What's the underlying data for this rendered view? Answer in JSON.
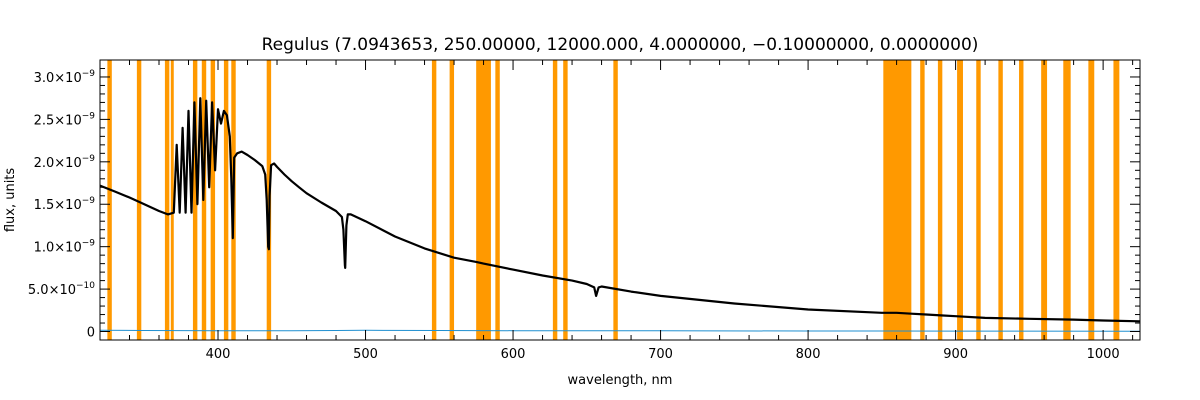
{
  "chart_data": {
    "type": "line",
    "title": "Regulus   (7.0943653, 250.00000, 12000.000, 4.0000000, −0.10000000, 0.0000000)",
    "xlabel": "wavelength, nm",
    "ylabel": "flux, units",
    "xlim": [
      320,
      1025
    ],
    "ylim": [
      -1e-10,
      3.2e-09
    ],
    "x_ticks": [
      {
        "value": 400,
        "label": "400"
      },
      {
        "value": 500,
        "label": "500"
      },
      {
        "value": 600,
        "label": "600"
      },
      {
        "value": 700,
        "label": "700"
      },
      {
        "value": 800,
        "label": "800"
      },
      {
        "value": 900,
        "label": "900"
      },
      {
        "value": 1000,
        "label": "1000"
      }
    ],
    "y_ticks": [
      {
        "value": 0,
        "mant": "0",
        "exp": ""
      },
      {
        "value": 5e-10,
        "mant": "5.0×10",
        "exp": "−10"
      },
      {
        "value": 1e-09,
        "mant": "1.0×10",
        "exp": "−9"
      },
      {
        "value": 1.5e-09,
        "mant": "1.5×10",
        "exp": "−9"
      },
      {
        "value": 2e-09,
        "mant": "2.0×10",
        "exp": "−9"
      },
      {
        "value": 2.5e-09,
        "mant": "2.5×10",
        "exp": "−9"
      },
      {
        "value": 3e-09,
        "mant": "3.0×10",
        "exp": "−9"
      }
    ],
    "colors": {
      "spectrum": "#000000",
      "error": "#1f8fd0",
      "mask": "#ff9900"
    },
    "masked_bands": [
      [
        325,
        328
      ],
      [
        345,
        348
      ],
      [
        364,
        367
      ],
      [
        368,
        370
      ],
      [
        383,
        386
      ],
      [
        389,
        392
      ],
      [
        395,
        398
      ],
      [
        404,
        407
      ],
      [
        409,
        412
      ],
      [
        433,
        436
      ],
      [
        545,
        548
      ],
      [
        557,
        560
      ],
      [
        575,
        585
      ],
      [
        588,
        591
      ],
      [
        627,
        630
      ],
      [
        634,
        637
      ],
      [
        668,
        671
      ],
      [
        851,
        870
      ],
      [
        876,
        879
      ],
      [
        888,
        891
      ],
      [
        901,
        905
      ],
      [
        914,
        917
      ],
      [
        929,
        932
      ],
      [
        943,
        946
      ],
      [
        958,
        962
      ],
      [
        973,
        978
      ],
      [
        990,
        994
      ],
      [
        1007,
        1011
      ]
    ],
    "series": [
      {
        "role": "flux",
        "x": [
          320,
          330,
          340,
          350,
          360,
          366,
          370,
          372,
          374,
          376,
          378,
          380,
          382,
          384,
          386,
          388,
          390,
          392,
          394,
          396,
          398,
          400,
          402,
          404,
          406,
          408,
          409,
          410,
          411,
          413,
          416,
          420,
          425,
          430,
          432,
          433,
          434,
          434.5,
          435,
          436,
          438,
          440,
          445,
          450,
          455,
          460,
          470,
          480,
          484,
          485,
          486,
          486.2,
          487,
          488,
          490,
          500,
          520,
          540,
          560,
          575,
          580,
          600,
          620,
          640,
          650,
          655,
          656.3,
          658,
          660,
          680,
          700,
          750,
          800,
          850,
          860,
          870,
          880,
          890,
          900,
          920,
          950,
          980,
          1000,
          1025
        ],
        "y": [
          1.72e-09,
          1.65e-09,
          1.58e-09,
          1.5e-09,
          1.42e-09,
          1.38e-09,
          1.4e-09,
          2.2e-09,
          1.4e-09,
          2.4e-09,
          1.4e-09,
          2.6e-09,
          1.4e-09,
          2.7e-09,
          1.5e-09,
          2.75e-09,
          1.55e-09,
          2.72e-09,
          1.7e-09,
          2.7e-09,
          1.9e-09,
          2.62e-09,
          2.45e-09,
          2.6e-09,
          2.55e-09,
          2.3e-09,
          1.8e-09,
          1.1e-09,
          2.05e-09,
          2.1e-09,
          2.12e-09,
          2.08e-09,
          2.02e-09,
          1.95e-09,
          1.85e-09,
          1.55e-09,
          1e-09,
          9.7e-10,
          1.6e-09,
          1.96e-09,
          1.98e-09,
          1.94e-09,
          1.85e-09,
          1.77e-09,
          1.7e-09,
          1.63e-09,
          1.52e-09,
          1.42e-09,
          1.35e-09,
          1.2e-09,
          7.8e-10,
          7.5e-10,
          1.25e-09,
          1.38e-09,
          1.38e-09,
          1.3e-09,
          1.12e-09,
          9.8e-10,
          8.7e-10,
          8.2e-10,
          8e-10,
          7.3e-10,
          6.6e-10,
          6e-10,
          5.6e-10,
          5.2e-10,
          4.2e-10,
          5.2e-10,
          5.3e-10,
          4.7e-10,
          4.2e-10,
          3.3e-10,
          2.6e-10,
          2.2e-10,
          2.2e-10,
          2.1e-10,
          2e-10,
          1.9e-10,
          1.8e-10,
          1.6e-10,
          1.5e-10,
          1.4e-10,
          1.3e-10,
          1.2e-10
        ]
      },
      {
        "role": "error",
        "x": [
          320,
          350,
          400,
          450,
          480,
          500,
          550,
          600,
          700,
          800,
          900,
          1025
        ],
        "y": [
          1.5e-11,
          1.2e-11,
          1e-11,
          9e-12,
          1.2e-11,
          1.4e-11,
          1.2e-11,
          1e-11,
          8e-12,
          6e-12,
          5e-12,
          4e-12
        ]
      }
    ]
  }
}
